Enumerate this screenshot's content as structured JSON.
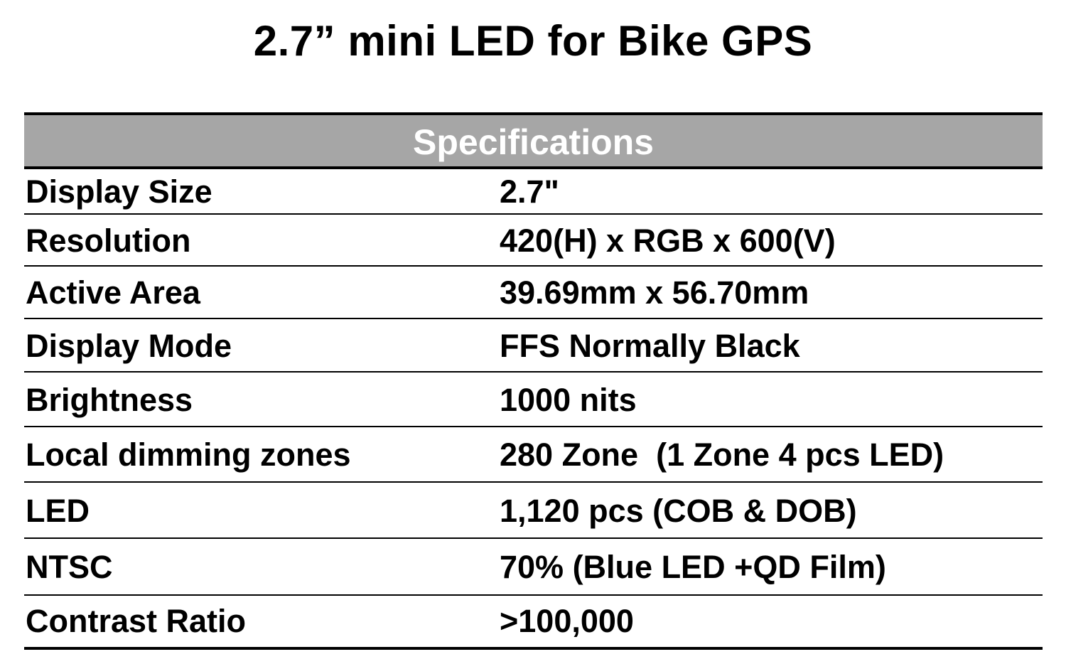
{
  "title": "2.7” mini LED for Bike GPS",
  "table": {
    "header": "Specifications",
    "rows": [
      {
        "label": "Display Size",
        "value": "2.7\""
      },
      {
        "label": "Resolution",
        "value": "420(H) x RGB x 600(V)"
      },
      {
        "label": "Active Area",
        "value": "39.69mm x 56.70mm"
      },
      {
        "label": "Display Mode",
        "value": "FFS Normally Black"
      },
      {
        "label": "Brightness",
        "value": "1000 nits"
      },
      {
        "label": "Local dimming zones",
        "value": "280 Zone  (1 Zone 4 pcs LED)"
      },
      {
        "label": "LED",
        "value": "1,120 pcs (COB & DOB)"
      },
      {
        "label": "NTSC",
        "value": "70% (Blue LED +QD Film)"
      },
      {
        "label": "Contrast Ratio",
        "value": ">100,000"
      }
    ]
  },
  "colors": {
    "header_background": "#a6a6a6",
    "header_text": "#ffffff",
    "text": "#000000",
    "rules": "#000000"
  }
}
